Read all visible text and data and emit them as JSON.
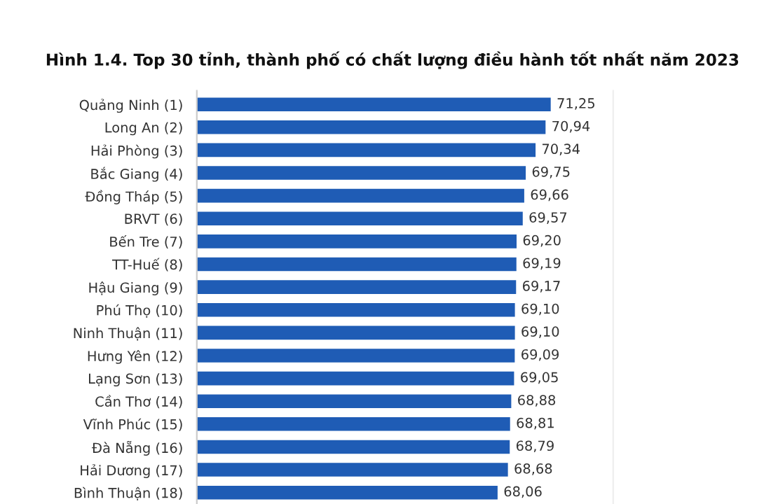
{
  "chart_data": {
    "type": "bar",
    "orientation": "horizontal",
    "title": "Hình 1.4. Top 30 tỉnh, thành phố có chất lượng điều hành tốt nhất năm 2023",
    "categories": [
      "Quảng Ninh (1)",
      "Long An (2)",
      "Hải Phòng (3)",
      "Bắc Giang (4)",
      "Đồng Tháp (5)",
      "BRVT (6)",
      "Bến Tre (7)",
      "TT-Huế (8)",
      "Hậu Giang (9)",
      "Phú Thọ (10)",
      "Ninh Thuận (11)",
      "Hưng Yên (12)",
      "Lạng Sơn (13)",
      "Cần Thơ (14)",
      "Vĩnh Phúc (15)",
      "Đà Nẵng (16)",
      "Hải Dương (17)",
      "Bình Thuận (18)"
    ],
    "values": [
      71.25,
      70.94,
      70.34,
      69.75,
      69.66,
      69.57,
      69.2,
      69.19,
      69.17,
      69.1,
      69.1,
      69.09,
      69.05,
      68.88,
      68.81,
      68.79,
      68.68,
      68.06
    ],
    "value_labels": [
      "71,25",
      "70,94",
      "70,34",
      "69,75",
      "69,66",
      "69,57",
      "69,20",
      "69,19",
      "69,17",
      "69,10",
      "69,10",
      "69,09",
      "69,05",
      "68,88",
      "68,81",
      "68,79",
      "68,68",
      "68,06"
    ],
    "color": "#1f5cb5",
    "xlim": [
      50,
      75
    ],
    "tick_labels": "y",
    "grid": false,
    "legend": false
  }
}
